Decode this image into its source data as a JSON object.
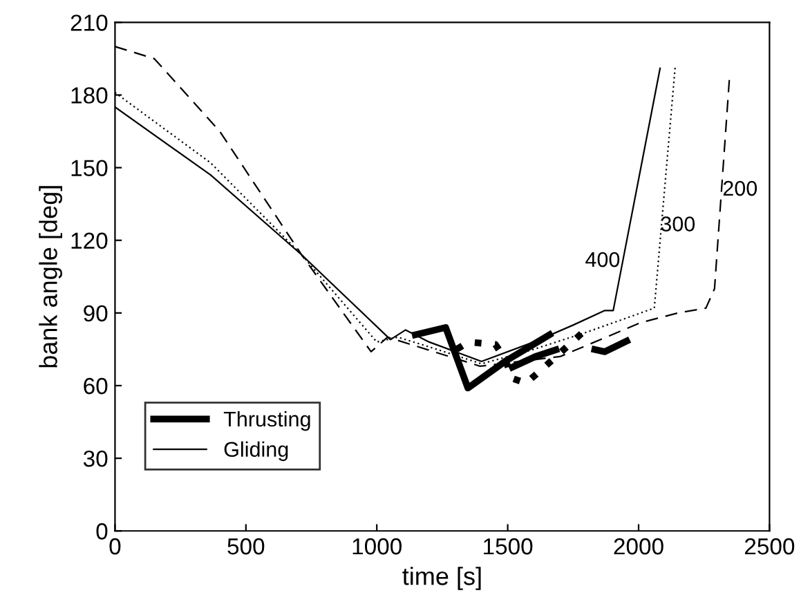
{
  "chart_data": {
    "type": "line",
    "xlabel": "time [s]",
    "ylabel": "bank angle [deg]",
    "xlim": [
      0,
      2500
    ],
    "xticks": [
      0,
      500,
      1000,
      1500,
      2000,
      2500
    ],
    "ylim": [
      0,
      210
    ],
    "yticks": [
      0,
      30,
      60,
      90,
      120,
      150,
      180,
      210
    ],
    "grid": false,
    "legend": "bottom left",
    "marker": "none",
    "series": [
      {
        "name": "Thrusting",
        "color": "#000000",
        "line_style": "solid",
        "x": [
          1147,
          1263,
          1348,
          1490,
          1660
        ],
        "values": [
          81,
          84,
          59,
          70,
          81
        ]
      },
      {
        "color": "#000000",
        "line_style": "dotted",
        "x": [
          1305,
          1350,
          1453,
          1490,
          1517,
          1570,
          1675,
          1797
        ],
        "values": [
          75,
          78,
          77,
          71,
          63,
          61,
          71,
          83
        ]
      },
      {
        "color": "#000000",
        "line_style": "dashed",
        "x": [
          1506,
          1606,
          1745,
          1871,
          1966
        ],
        "values": [
          67,
          72,
          77,
          74,
          79
        ]
      },
      {
        "name": "Gliding",
        "color": "#000000",
        "line_style": "solid",
        "x": [
          0,
          365,
          713,
          1052,
          1110,
          1200,
          1400,
          1600,
          1750,
          1871,
          1903,
          2082
        ],
        "values": [
          175,
          147,
          114,
          79,
          83,
          78,
          70,
          78,
          85,
          91,
          91,
          191
        ]
      },
      {
        "color": "#000000",
        "line_style": "dotted",
        "x": [
          0,
          365,
          713,
          1000,
          1080,
          1200,
          1400,
          1600,
          1800,
          2008,
          2060,
          2140
        ],
        "values": [
          181,
          152,
          114,
          78,
          80,
          76,
          69,
          75,
          82,
          90,
          92,
          192
        ]
      },
      {
        "color": "#000000",
        "line_style": "dashed",
        "x": [
          0,
          150,
          400,
          713,
          978,
          1041,
          1395,
          1700,
          2008,
          2150,
          2257,
          2290,
          2347
        ],
        "values": [
          200,
          195,
          165,
          114,
          74,
          80,
          68,
          72,
          86,
          90,
          92,
          100,
          187
        ]
      }
    ],
    "annotations": [
      "400",
      "300",
      "200"
    ]
  }
}
